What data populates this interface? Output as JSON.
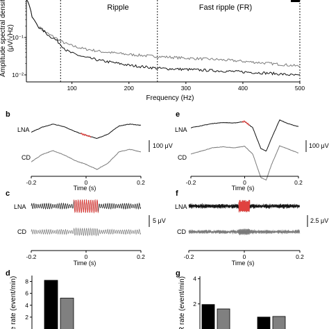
{
  "panel_labels": {
    "b": "b",
    "c": "c",
    "d": "d",
    "e": "e",
    "f": "f",
    "g": "g"
  },
  "colors": {
    "lna": "#111111",
    "cd": "#7a7a7a",
    "highlight": "#e0423f",
    "bar_lna": "#000000",
    "bar_cd": "#808080"
  },
  "chart_data": [
    {
      "id": "a",
      "type": "line",
      "xlabel": "Frequency (Hz)",
      "ylabel_line1": "Amplitude spectral densit",
      "ylabel_line2": "(μV/√Hz)",
      "yscale": "log",
      "xlim": [
        20,
        500
      ],
      "ylim": [
        0.0065,
        1
      ],
      "x_ticks": [
        100,
        200,
        300,
        400,
        500
      ],
      "y_ticks": [
        {
          "value": 0.01,
          "label": "10⁻²"
        },
        {
          "value": 0.1,
          "label": "10⁻¹"
        }
      ],
      "bands": [
        {
          "label": "Ripple",
          "from": 80,
          "to": 250
        },
        {
          "label": "Fast ripple (FR)",
          "from": 250,
          "to": 500
        }
      ],
      "series": [
        {
          "key": "lna",
          "x": [
            20,
            30,
            40,
            50,
            60,
            70,
            80,
            90,
            100,
            120,
            150,
            200,
            250,
            300,
            350,
            400,
            450,
            500
          ],
          "values": [
            1.1,
            0.35,
            0.2,
            0.15,
            0.11,
            0.09,
            0.065,
            0.045,
            0.038,
            0.03,
            0.024,
            0.018,
            0.015,
            0.014,
            0.013,
            0.012,
            0.011,
            0.0095
          ]
        },
        {
          "key": "cd",
          "x": [
            20,
            30,
            40,
            50,
            60,
            70,
            80,
            90,
            100,
            120,
            150,
            200,
            250,
            300,
            350,
            400,
            450,
            500
          ],
          "values": [
            1.1,
            0.35,
            0.2,
            0.15,
            0.12,
            0.1,
            0.08,
            0.068,
            0.06,
            0.05,
            0.042,
            0.035,
            0.031,
            0.028,
            0.026,
            0.023,
            0.02,
            0.017
          ]
        }
      ]
    },
    {
      "id": "b",
      "type": "line",
      "xlabel": "Time (s)",
      "xlim": [
        -0.2,
        0.2
      ],
      "x_tick_labels": [
        "-0.2",
        "0",
        "0.2"
      ],
      "row_labels": [
        "LNA",
        "CD"
      ],
      "scale_label": "100 μV",
      "series": [
        {
          "key": "lna",
          "x": [
            -0.2,
            -0.16,
            -0.12,
            -0.08,
            -0.04,
            0,
            0.04,
            0.08,
            0.12,
            0.16,
            0.2
          ],
          "values": [
            -5,
            3,
            8,
            4,
            -4,
            -10,
            -15,
            -8,
            5,
            8,
            6
          ],
          "highlight": [
            -0.02,
            0.02
          ]
        },
        {
          "key": "cd",
          "x": [
            -0.2,
            -0.16,
            -0.12,
            -0.08,
            -0.04,
            0,
            0.04,
            0.08,
            0.12,
            0.16,
            0.2
          ],
          "values": [
            -8,
            4,
            10,
            3,
            -6,
            -12,
            -20,
            -10,
            8,
            12,
            8
          ]
        }
      ]
    },
    {
      "id": "e",
      "type": "line",
      "xlabel": "Time (s)",
      "xlim": [
        -0.2,
        0.2
      ],
      "x_tick_labels": [
        "-0.2",
        "0",
        "0.2"
      ],
      "row_labels": [
        "LNA",
        "CD"
      ],
      "scale_label": "100 μV",
      "series": [
        {
          "key": "lna",
          "x": [
            -0.2,
            -0.16,
            -0.12,
            -0.08,
            -0.04,
            0,
            0.03,
            0.06,
            0.08,
            0.1,
            0.13,
            0.16,
            0.2
          ],
          "values": [
            0,
            4,
            8,
            10,
            9,
            12,
            0,
            -40,
            -45,
            -20,
            15,
            8,
            2
          ],
          "highlight": [
            -0.01,
            0.02
          ]
        },
        {
          "key": "cd",
          "x": [
            -0.2,
            -0.16,
            -0.12,
            -0.08,
            -0.04,
            0,
            0.03,
            0.06,
            0.08,
            0.1,
            0.13,
            0.16,
            0.2
          ],
          "values": [
            0,
            6,
            12,
            14,
            12,
            15,
            0,
            -45,
            -50,
            -20,
            16,
            10,
            2
          ]
        }
      ]
    },
    {
      "id": "c",
      "type": "line",
      "xlabel": "Time (s)",
      "xlim": [
        -0.2,
        0.2
      ],
      "x_tick_labels": [
        "-0.2",
        "0",
        "0.2"
      ],
      "row_labels": [
        "LNA",
        "CD"
      ],
      "scale_label": "5 μV",
      "signal": {
        "kind": "ripple",
        "frequency_hz": 130,
        "base_amplitude_uv": 1.8,
        "burst_amplitude_uv": 4.2,
        "burst_window": [
          -0.045,
          0.045
        ]
      }
    },
    {
      "id": "f",
      "type": "line",
      "xlabel": "Time (s)",
      "xlim": [
        -0.2,
        0.2
      ],
      "x_tick_labels": [
        "-0.2",
        "0",
        "0.2"
      ],
      "row_labels": [
        "LNA",
        "CD"
      ],
      "scale_label": "2.5 μV",
      "signal": {
        "kind": "fast_ripple",
        "frequency_hz": 380,
        "base_amplitude_uv": 1.0,
        "burst_amplitude_uv": 3.2,
        "burst_window": [
          -0.02,
          0.02
        ]
      }
    },
    {
      "id": "d",
      "type": "bar",
      "ylabel": "le rate (event/min)",
      "ylim": [
        0,
        9
      ],
      "y_ticks": [
        2,
        4,
        6,
        8
      ],
      "categories": [
        "LNA",
        "CD"
      ],
      "values": [
        8.2,
        5.2
      ]
    },
    {
      "id": "g",
      "type": "bar",
      "ylabel": "R rate (event/min)",
      "ylim": [
        0,
        4.2
      ],
      "y_ticks": [
        2,
        4
      ],
      "groups": [
        {
          "values": [
            1.95,
            1.6
          ]
        },
        {
          "values": [
            0.95,
            1.0
          ]
        }
      ]
    }
  ]
}
